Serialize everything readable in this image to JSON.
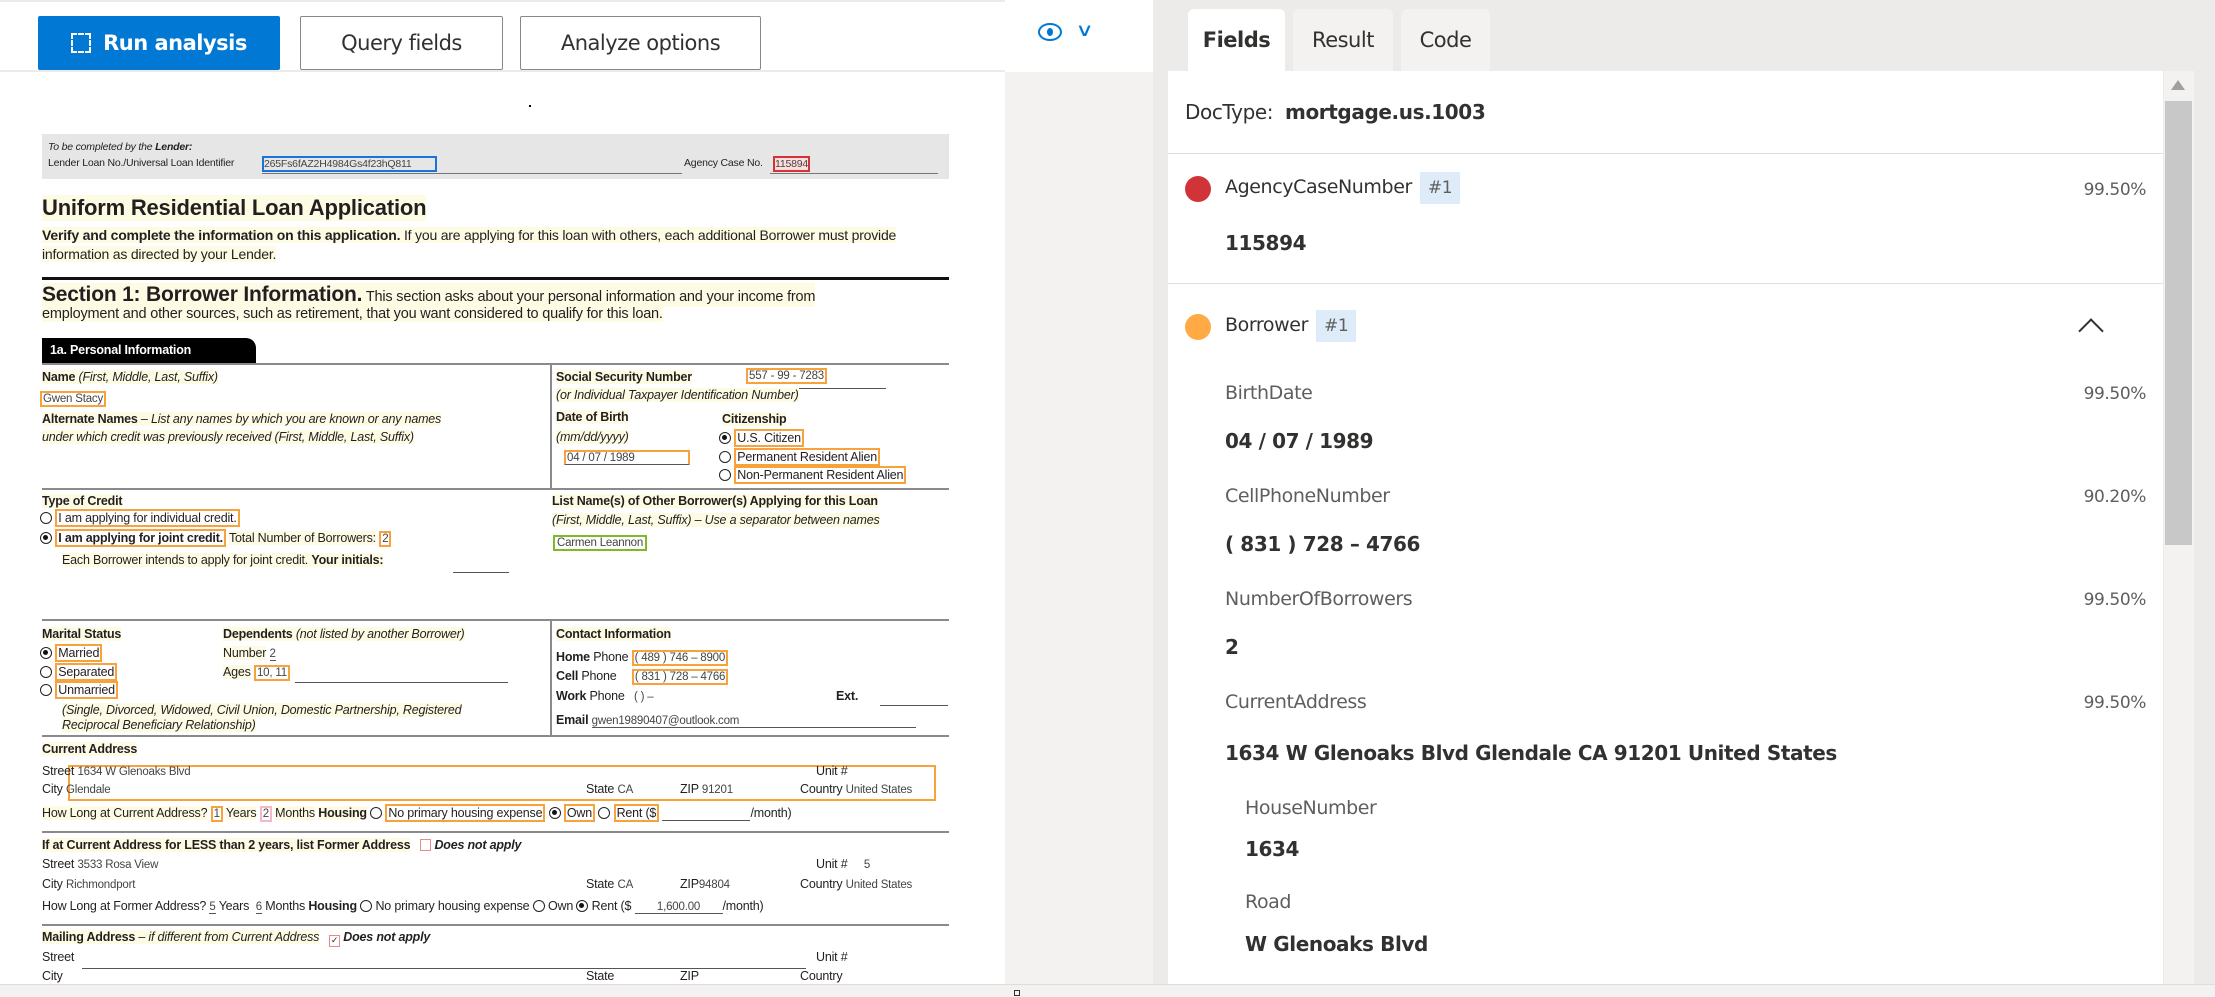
{
  "toolbar": {
    "run_analysis": "Run analysis",
    "query_fields": "Query fields",
    "analyze_options": "Analyze options",
    "view_icon": "eye-icon",
    "chevron_icon": "chevron-down-icon",
    "accent": "#0078d4"
  },
  "tabs": [
    "Fields",
    "Result",
    "Code"
  ],
  "panel": {
    "doctype_label": "DocType:",
    "doctype_value": "mortgage.us.1003",
    "agency": {
      "name": "AgencyCaseNumber",
      "badge": "#1",
      "confidence": "99.50%",
      "value": "115894",
      "color": "#d13438"
    },
    "borrower": {
      "name": "Borrower",
      "badge": "#1",
      "color": "#ffaa44",
      "expanded": true,
      "fields": [
        {
          "name": "BirthDate",
          "confidence": "99.50%",
          "value": "04 / 07 / 1989"
        },
        {
          "name": "CellPhoneNumber",
          "confidence": "90.20%",
          "value": "( 831 ) 728 – 4766"
        },
        {
          "name": "NumberOfBorrowers",
          "confidence": "99.50%",
          "value": "2"
        },
        {
          "name": "CurrentAddress",
          "confidence": "99.50%",
          "value": "1634 W Glenoaks Blvd Glendale CA 91201 United States"
        }
      ],
      "subfields": [
        {
          "name": "HouseNumber",
          "value": "1634"
        },
        {
          "name": "Road",
          "value": "W Glenoaks Blvd"
        }
      ]
    }
  },
  "doc": {
    "lender_heading": "To be completed by the",
    "lender_heading_bold": "Lender:",
    "lender_loan_label": "Lender Loan No./Universal Loan Identifier",
    "lender_loan_value": "265Fs6fAZ2H4984Gs4f23hQ811",
    "agency_case_label": "Agency Case No.",
    "agency_case_value": "115894",
    "title": "Uniform Residential Loan Application",
    "verify_bold": "Verify and complete the information on this application.",
    "verify_rest": " If you are applying for this loan with others, each additional Borrower must provide",
    "verify_line2": "information as directed by your Lender.",
    "section_title": "Section 1: Borrower Information.",
    "section_rest": " This section asks about your personal information and your income from",
    "section_line2": "employment and other sources, such as retirement, that you want considered to qualify for this loan.",
    "personal_tab": "1a. Personal Information",
    "name_label": "Name",
    "name_hint": " (First, Middle, Last, Suffix)",
    "name_value": "Gwen Stacy",
    "alt_label": "Alternate Names",
    "alt_hint": " – List any names by which you are known or any names",
    "alt_hint2": "under which credit was previously received  (First, Middle, Last, Suffix)",
    "ssn_label": "Social Security Number",
    "ssn_value": "557 - 99 - 7283",
    "ssn_hint": "(or Individual Taxpayer Identification Number)",
    "dob_label": "Date of Birth",
    "dob_hint": "(mm/dd/yyyy)",
    "dob_value": "04  /  07  /  1989",
    "citizenship_label": "Citizenship",
    "citizenship_options": [
      "U.S. Citizen",
      "Permanent Resident Alien",
      "Non-Permanent Resident Alien"
    ],
    "credit_label": "Type of Credit",
    "credit_options": [
      "I am applying for individual credit.",
      "I am applying for joint credit."
    ],
    "total_borrowers_label": "Total Number of Borrowers:",
    "total_borrowers_value": "2",
    "joint_note": "Each Borrower intends to apply for joint credit.",
    "initials_label": "Your initials:",
    "other_borrowers_label": "List Name(s) of Other Borrower(s) Applying for this Loan",
    "other_borrowers_hint": "(First, Middle, Last, Suffix) – Use a separator between names",
    "other_borrowers_value": "Carmen Leannon",
    "marital_label": "Marital Status",
    "marital_options": [
      "Married",
      "Separated",
      "Unmarried"
    ],
    "marital_hint": "(Single, Divorced, Widowed, Civil Union, Domestic Partnership, Registered",
    "marital_hint2": "Reciprocal Beneficiary Relationship)",
    "dependents_label": "Dependents",
    "dependents_hint": " (not listed by another Borrower)",
    "dep_number_label": "Number",
    "dep_number_value": "2",
    "dep_ages_label": "Ages",
    "dep_ages_value": "10, 11",
    "contact_label": "Contact Information",
    "home_phone_label": "Home",
    "cell_phone_label": "Cell",
    "work_phone_label": "Work",
    "phone_word": "Phone",
    "home_phone_value": "( 489 ) 746  –   8900",
    "cell_phone_value": "( 831 ) 728  –   4766",
    "work_phone_value": "(        )        –",
    "ext_label": "Ext.",
    "email_label": "Email",
    "email_value": "gwen19890407@outlook.com",
    "current_address_label": "Current Address",
    "street_label": "Street",
    "unit_label": "Unit #",
    "city_label": "City",
    "state_label": "State",
    "zip_label": "ZIP",
    "country_label": "Country",
    "cur_street": "1634 W Glenoaks Blvd",
    "cur_city": "Glendale",
    "cur_state": "CA",
    "cur_zip": "91201",
    "cur_country": "United States",
    "how_long_current": "How Long at Current Address?",
    "years_label": "Years",
    "months_label": "Months",
    "housing_label": "Housing",
    "cur_years": "1",
    "cur_months": "2",
    "housing_options": [
      "No primary housing expense",
      "Own",
      "Rent ($"
    ],
    "per_month": "/month)",
    "former_label": "If at Current Address for LESS than 2 years, list Former Address",
    "does_not_apply": "Does not apply",
    "for_street": "3533 Rosa View",
    "for_unit": "5",
    "for_city": "Richmondport",
    "for_state": "CA",
    "for_zip": "94804",
    "for_country": "United States",
    "how_long_former": "How Long at Former Address?",
    "for_years": "5",
    "for_months": "6",
    "for_rent": "1,600.00",
    "mailing_label": "Mailing Address",
    "mailing_hint": " – if different from Current Address",
    "highlight_colors": {
      "field": "#f7a23b",
      "loan_id": "#1a73d9",
      "agency_case": "#d13438",
      "other_borrowers": "#7dba2b"
    }
  }
}
